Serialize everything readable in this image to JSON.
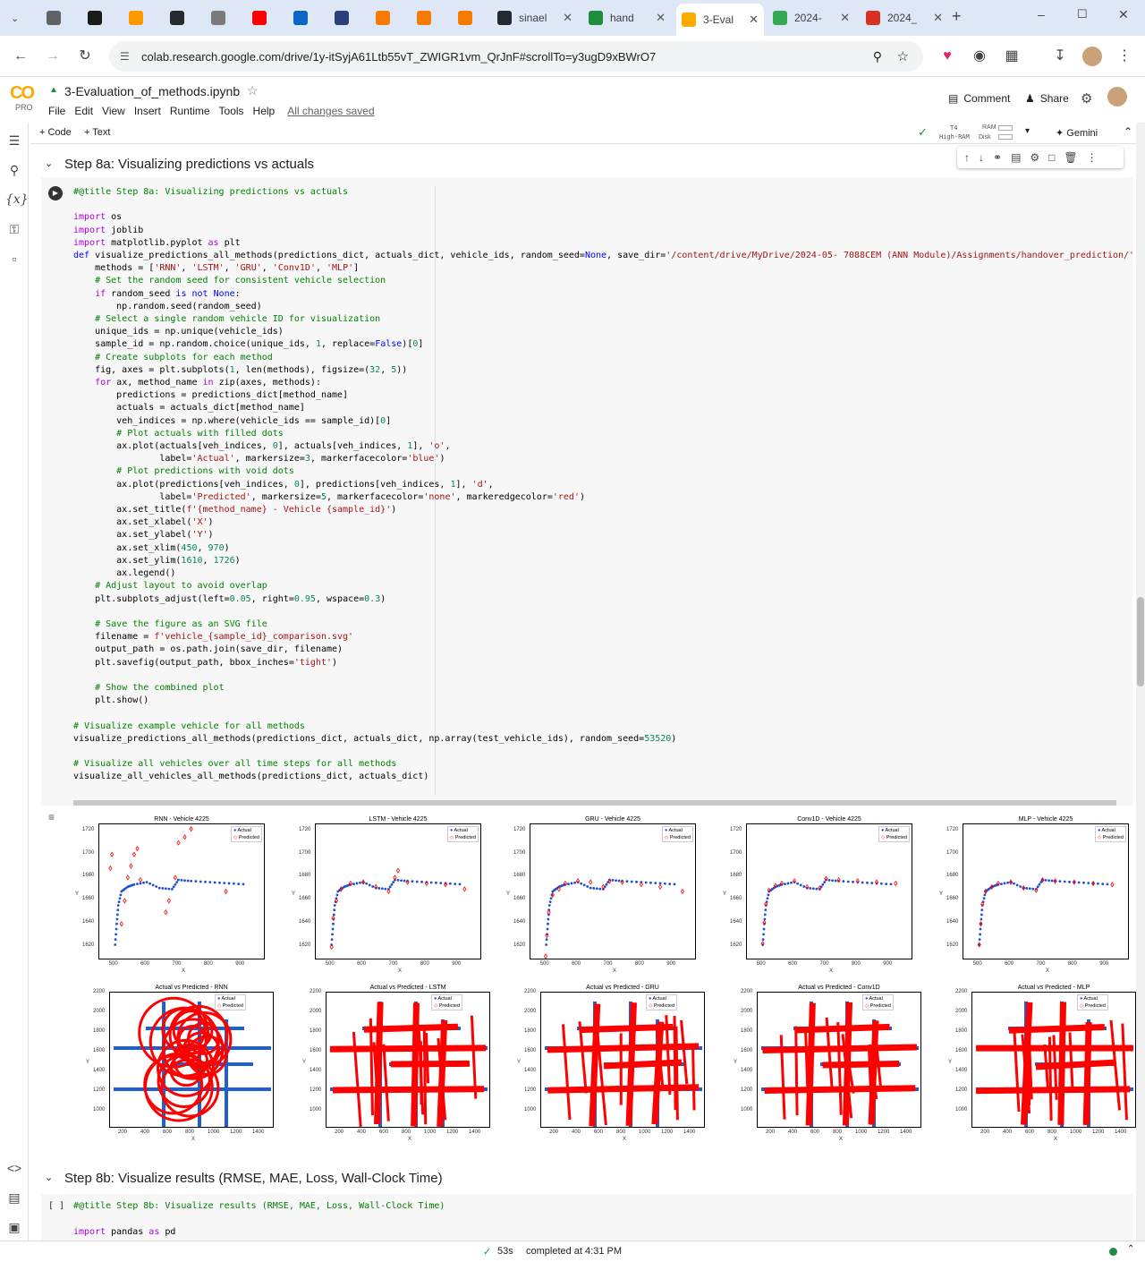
{
  "tabs": [
    {
      "title": "",
      "fav": "#5f6368",
      "x": 46,
      "w": 36
    },
    {
      "title": "",
      "fav": "#1a1a1a",
      "x": 92,
      "w": 36
    },
    {
      "title": "",
      "fav": "#ff9900",
      "x": 138,
      "w": 36
    },
    {
      "title": "",
      "fav": "#24292f",
      "x": 184,
      "w": 36
    },
    {
      "title": "",
      "fav": "#7a7a7a",
      "x": 230,
      "w": 36
    },
    {
      "title": "",
      "fav": "#ff0000",
      "x": 276,
      "w": 36
    },
    {
      "title": "",
      "fav": "#0a66c2",
      "x": 322,
      "w": 36
    },
    {
      "title": "",
      "fav": "#2b3f7a",
      "x": 368,
      "w": 36
    },
    {
      "title": "",
      "fav": "#f57c00",
      "x": 414,
      "w": 36
    },
    {
      "title": "",
      "fav": "#f57c00",
      "x": 460,
      "w": 36
    },
    {
      "title": "",
      "fav": "#f57c00",
      "x": 506,
      "w": 36
    },
    {
      "title": "sinael",
      "fav": "#24292f",
      "x": 550,
      "w": 96
    },
    {
      "title": "hand",
      "fav": "#1e8e3e",
      "x": 652,
      "w": 98
    },
    {
      "title": "3-Eval",
      "fav": "#f9ab00",
      "x": 756,
      "w": 98
    },
    {
      "title": "2024-",
      "fav": "#34a853",
      "x": 858,
      "w": 98
    },
    {
      "title": "2024_",
      "fav": "#d93025",
      "x": 962,
      "w": 98
    }
  ],
  "address": {
    "url": "colab.research.google.com/drive/1y-itSyjA61Ltb55vT_ZWIGR1vm_QrJnF#scrollTo=y3ugD9xBWrO7"
  },
  "colab": {
    "logo": "CO",
    "pro": "PRO",
    "filename": "3-Evaluation_of_methods.ipynb",
    "menu": [
      "File",
      "Edit",
      "View",
      "Insert",
      "Runtime",
      "Tools",
      "Help"
    ],
    "saved": "All changes saved",
    "comment": "Comment",
    "share": "Share"
  },
  "toolbar": {
    "code": "+ Code",
    "text": "+ Text",
    "t4": "T4",
    "highram": "High-RAM",
    "ram": "RAM",
    "disk": "Disk",
    "gemini": "Gemini"
  },
  "section_8a": "Step 8a: Visualizing predictions vs actuals",
  "section_8b": "Step 8b: Visualize results (RMSE, MAE, Loss, Wall-Clock Time)",
  "cell8b_title": "#@title Step 8b: Visualize results (RMSE, MAE, Loss, Wall-Clock Time)",
  "cell8b_import": "import pandas as pd",
  "cell8b_bracket": "[ ]",
  "status": {
    "time": "53s",
    "completed": "completed at 4:31 PM"
  },
  "plots_top": [
    {
      "title": "RNN - Vehicle 4225"
    },
    {
      "title": "LSTM - Vehicle 4225"
    },
    {
      "title": "GRU - Vehicle 4225"
    },
    {
      "title": "Conv1D - Vehicle 4225"
    },
    {
      "title": "MLP - Vehicle 4225"
    }
  ],
  "plots_bottom": [
    {
      "title": "Actual vs Predicted - RNN"
    },
    {
      "title": "Actual vs Predicted - LSTM"
    },
    {
      "title": "Actual vs Predicted - GRU"
    },
    {
      "title": "Actual vs Predicted - Conv1D"
    },
    {
      "title": "Actual vs Predicted - MLP"
    }
  ],
  "legend": {
    "actual": "Actual",
    "predicted": "Predicted"
  },
  "axes": {
    "x": "X",
    "y": "Y",
    "top_xticks": [
      "500",
      "600",
      "700",
      "800",
      "900"
    ],
    "top_yticks": [
      "1720",
      "1700",
      "1680",
      "1660",
      "1640",
      "1620"
    ],
    "bot_xticks": [
      "200",
      "400",
      "600",
      "800",
      "1000",
      "1200",
      "1400"
    ],
    "bot_yticks": [
      "2200",
      "2000",
      "1800",
      "1600",
      "1400",
      "1200",
      "1000"
    ]
  },
  "chart_data": [
    {
      "type": "scatter",
      "title": "RNN - Vehicle 4225",
      "xlabel": "X",
      "ylabel": "Y",
      "xlim": [
        450,
        970
      ],
      "ylim": [
        1610,
        1726
      ],
      "series": [
        {
          "name": "Actual",
          "x": [
            500,
            505,
            510,
            520,
            540,
            560,
            600,
            640,
            680,
            700,
            740,
            800,
            860,
            920
          ],
          "y": [
            1622,
            1640,
            1656,
            1668,
            1672,
            1674,
            1676,
            1671,
            1670,
            1678,
            1677,
            1676,
            1675,
            1674
          ]
        },
        {
          "name": "Predicted",
          "x": [
            485,
            490,
            520,
            530,
            540,
            550,
            560,
            570,
            580,
            660,
            670,
            690,
            700,
            720,
            740,
            850
          ],
          "y": [
            1688,
            1700,
            1640,
            1660,
            1680,
            1690,
            1700,
            1705,
            1678,
            1650,
            1660,
            1680,
            1710,
            1715,
            1722,
            1668
          ]
        }
      ]
    },
    {
      "type": "scatter",
      "title": "LSTM - Vehicle 4225",
      "xlabel": "X",
      "ylabel": "Y",
      "xlim": [
        450,
        970
      ],
      "ylim": [
        1610,
        1726
      ],
      "series": [
        {
          "name": "Actual",
          "x": [
            500,
            505,
            510,
            520,
            540,
            560,
            600,
            640,
            680,
            700,
            740,
            800,
            860,
            920
          ],
          "y": [
            1622,
            1640,
            1656,
            1668,
            1672,
            1674,
            1676,
            1671,
            1670,
            1678,
            1677,
            1676,
            1675,
            1674
          ]
        },
        {
          "name": "Predicted",
          "x": [
            500,
            505,
            515,
            530,
            560,
            600,
            640,
            680,
            700,
            710,
            740,
            800,
            860,
            920
          ],
          "y": [
            1620,
            1645,
            1660,
            1670,
            1675,
            1676,
            1672,
            1668,
            1680,
            1686,
            1676,
            1675,
            1674,
            1670
          ]
        }
      ]
    },
    {
      "type": "scatter",
      "title": "GRU - Vehicle 4225",
      "xlabel": "X",
      "ylabel": "Y",
      "xlim": [
        450,
        970
      ],
      "ylim": [
        1610,
        1726
      ],
      "series": [
        {
          "name": "Actual",
          "x": [
            500,
            505,
            510,
            520,
            540,
            560,
            600,
            640,
            680,
            700,
            740,
            800,
            860,
            920
          ],
          "y": [
            1622,
            1640,
            1656,
            1668,
            1672,
            1674,
            1676,
            1671,
            1670,
            1678,
            1677,
            1676,
            1675,
            1674
          ]
        },
        {
          "name": "Predicted",
          "x": [
            498,
            502,
            508,
            520,
            540,
            560,
            600,
            640,
            680,
            700,
            740,
            800,
            860,
            930
          ],
          "y": [
            1612,
            1630,
            1650,
            1665,
            1670,
            1675,
            1677,
            1676,
            1672,
            1677,
            1676,
            1674,
            1672,
            1668
          ]
        }
      ]
    },
    {
      "type": "scatter",
      "title": "Conv1D - Vehicle 4225",
      "xlabel": "X",
      "ylabel": "Y",
      "xlim": [
        450,
        970
      ],
      "ylim": [
        1610,
        1726
      ],
      "series": [
        {
          "name": "Actual",
          "x": [
            500,
            505,
            510,
            520,
            540,
            560,
            600,
            640,
            680,
            700,
            740,
            800,
            860,
            920
          ],
          "y": [
            1622,
            1640,
            1656,
            1668,
            1672,
            1674,
            1676,
            1671,
            1670,
            1678,
            1677,
            1676,
            1675,
            1674
          ]
        },
        {
          "name": "Predicted",
          "x": [
            500,
            505,
            510,
            520,
            540,
            560,
            600,
            640,
            680,
            700,
            740,
            800,
            860,
            920
          ],
          "y": [
            1623,
            1641,
            1657,
            1669,
            1673,
            1675,
            1677,
            1672,
            1671,
            1679,
            1678,
            1677,
            1676,
            1675
          ]
        }
      ]
    },
    {
      "type": "scatter",
      "title": "MLP - Vehicle 4225",
      "xlabel": "X",
      "ylabel": "Y",
      "xlim": [
        450,
        970
      ],
      "ylim": [
        1610,
        1726
      ],
      "series": [
        {
          "name": "Actual",
          "x": [
            500,
            505,
            510,
            520,
            540,
            560,
            600,
            640,
            680,
            700,
            740,
            800,
            860,
            920
          ],
          "y": [
            1622,
            1640,
            1656,
            1668,
            1672,
            1674,
            1676,
            1671,
            1670,
            1678,
            1677,
            1676,
            1675,
            1674
          ]
        },
        {
          "name": "Predicted",
          "x": [
            500,
            505,
            510,
            520,
            540,
            560,
            600,
            640,
            680,
            700,
            740,
            800,
            860,
            920
          ],
          "y": [
            1622,
            1640,
            1657,
            1668,
            1672,
            1675,
            1676,
            1671,
            1669,
            1678,
            1677,
            1676,
            1675,
            1674
          ]
        }
      ]
    }
  ]
}
